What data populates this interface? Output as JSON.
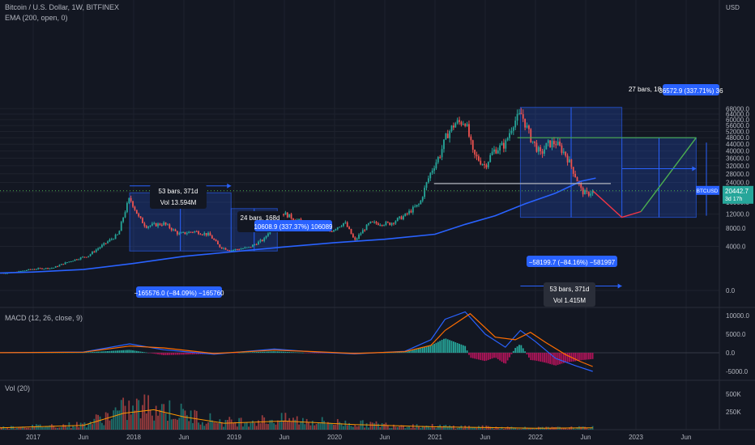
{
  "header": {
    "symbol_line": "Bitcoin / U.S. Dollar, 1W, BITFINEX",
    "ema_line": "EMA (200, open, 0)"
  },
  "panes": {
    "macd_label": "MACD (12, 26, close, 9)",
    "vol_label": "Vol (20)"
  },
  "axis": {
    "currency": "USD",
    "price_ticks": [
      {
        "v": 68000,
        "label": "68000.0"
      },
      {
        "v": 64000,
        "label": "64000.0"
      },
      {
        "v": 60000,
        "label": "60000.0"
      },
      {
        "v": 56000,
        "label": "56000.0"
      },
      {
        "v": 52000,
        "label": "52000.0"
      },
      {
        "v": 48000,
        "label": "48000.0"
      },
      {
        "v": 44000,
        "label": "44000.0"
      },
      {
        "v": 40000,
        "label": "40000.0"
      },
      {
        "v": 36000,
        "label": "36000.0"
      },
      {
        "v": 32000,
        "label": "32000.0"
      },
      {
        "v": 28000,
        "label": "28000.0"
      },
      {
        "v": 24000,
        "label": "24000.0"
      },
      {
        "v": 20000,
        "label": "20000.0"
      },
      {
        "v": 16000,
        "label": "16000.0"
      },
      {
        "v": 12000,
        "label": "12000.0"
      },
      {
        "v": 8000,
        "label": "8000.0"
      },
      {
        "v": 4000,
        "label": "4000.0"
      },
      {
        "v": 0,
        "label": "0.0"
      }
    ],
    "macd_ticks": [
      {
        "v": 10000,
        "label": "10000.0"
      },
      {
        "v": 5000,
        "label": "5000.0"
      },
      {
        "v": 0,
        "label": "0.0"
      },
      {
        "v": -5000,
        "label": "-5000.0"
      }
    ],
    "vol_ticks": [
      {
        "v": 500000,
        "label": "500K"
      },
      {
        "v": 250000,
        "label": "250K"
      }
    ],
    "time_ticks": [
      {
        "t": 2017.0,
        "label": "2017"
      },
      {
        "t": 2017.5,
        "label": "Jun"
      },
      {
        "t": 2018.0,
        "label": "2018"
      },
      {
        "t": 2018.5,
        "label": "Jun"
      },
      {
        "t": 2019.0,
        "label": "2019"
      },
      {
        "t": 2019.5,
        "label": "Jun"
      },
      {
        "t": 2020.0,
        "label": "2020"
      },
      {
        "t": 2020.5,
        "label": "Jun"
      },
      {
        "t": 2021.0,
        "label": "2021"
      },
      {
        "t": 2021.5,
        "label": "Jun"
      },
      {
        "t": 2022.0,
        "label": "2022"
      },
      {
        "t": 2022.5,
        "label": "Jun"
      },
      {
        "t": 2023.0,
        "label": "2023"
      },
      {
        "t": 2023.5,
        "label": "Jun"
      }
    ]
  },
  "price_badge": {
    "symbol": "BTCUSD",
    "price": "20442.7",
    "countdown": "3d 17h",
    "value": 20442.7
  },
  "annotations": {
    "box1": {
      "bars": "53 bars, 371d",
      "vol": "Vol 13.594M",
      "change": "−165576.0 (−84.09%) −165760"
    },
    "box2": {
      "bars": "24 bars, 168d",
      "vol": "Vol",
      "change": "10608.9 (337.37%) 106089"
    },
    "box3": {
      "bars": "53 bars, 371d",
      "vol": "Vol 1.415M",
      "change": "−58199.7 (−84.16%) −581997"
    },
    "box4": {
      "bars": "27 bars, 18",
      "change": "36572.9 (337.71%) 36"
    }
  },
  "colors": {
    "background": "#131722",
    "grid": "#1e222d",
    "up": "#26a69a",
    "down": "#ef5350",
    "ema": "#2962ff",
    "macd": "#2962ff",
    "signal": "#ff6d00",
    "range_box": "#2962ff",
    "green_line": "#4caf50",
    "red_line": "#f23645"
  },
  "chart_data": {
    "type": "candlestick",
    "interval": "1W",
    "price_axis": "log",
    "ohlc_x_units": "year",
    "ema_200": [
      [
        2016.55,
        600
      ],
      [
        2017.0,
        700
      ],
      [
        2017.5,
        900
      ],
      [
        2018.0,
        1500
      ],
      [
        2018.5,
        2400
      ],
      [
        2019.0,
        3100
      ],
      [
        2019.5,
        3900
      ],
      [
        2020.0,
        4700
      ],
      [
        2020.5,
        5400
      ],
      [
        2021.0,
        6500
      ],
      [
        2021.3,
        9000
      ],
      [
        2021.6,
        11500
      ],
      [
        2021.9,
        15500
      ],
      [
        2022.2,
        19500
      ],
      [
        2022.45,
        24500
      ],
      [
        2022.6,
        26000
      ]
    ],
    "price_path": [
      [
        2016.55,
        620
      ],
      [
        2016.8,
        650
      ],
      [
        2017.0,
        950
      ],
      [
        2017.2,
        1050
      ],
      [
        2017.4,
        1900
      ],
      [
        2017.55,
        2500
      ],
      [
        2017.7,
        4300
      ],
      [
        2017.85,
        6500
      ],
      [
        2017.96,
        17500
      ],
      [
        2018.05,
        11000
      ],
      [
        2018.12,
        8500
      ],
      [
        2018.3,
        9200
      ],
      [
        2018.45,
        6500
      ],
      [
        2018.6,
        7200
      ],
      [
        2018.75,
        6400
      ],
      [
        2018.85,
        4000
      ],
      [
        2018.96,
        3300
      ],
      [
        2019.15,
        3800
      ],
      [
        2019.3,
        5400
      ],
      [
        2019.48,
        12500
      ],
      [
        2019.6,
        10500
      ],
      [
        2019.8,
        8000
      ],
      [
        2019.96,
        7200
      ],
      [
        2020.1,
        9500
      ],
      [
        2020.2,
        5000
      ],
      [
        2020.35,
        9300
      ],
      [
        2020.55,
        9200
      ],
      [
        2020.7,
        11500
      ],
      [
        2020.85,
        15500
      ],
      [
        2020.96,
        29000
      ],
      [
        2021.05,
        38000
      ],
      [
        2021.12,
        50000
      ],
      [
        2021.2,
        57500
      ],
      [
        2021.3,
        59000
      ],
      [
        2021.38,
        38000
      ],
      [
        2021.5,
        32000
      ],
      [
        2021.58,
        40000
      ],
      [
        2021.7,
        44000
      ],
      [
        2021.78,
        58000
      ],
      [
        2021.86,
        64000
      ],
      [
        2021.95,
        48000
      ],
      [
        2022.05,
        38000
      ],
      [
        2022.12,
        44000
      ],
      [
        2022.2,
        45000
      ],
      [
        2022.3,
        38000
      ],
      [
        2022.38,
        29000
      ],
      [
        2022.46,
        20200
      ],
      [
        2022.52,
        19000
      ],
      [
        2022.57,
        20442.7
      ]
    ],
    "measure_boxes": [
      {
        "t0": 2017.96,
        "t1": 2018.97,
        "p0": 3200,
        "p1": 19600
      },
      {
        "t0": 2018.97,
        "t1": 2019.43,
        "p0": 3200,
        "p1": 13800
      },
      {
        "t0": 2021.85,
        "t1": 2022.86,
        "p0": 11000,
        "p1": 69000
      },
      {
        "t0": 2022.86,
        "t1": 2023.6,
        "p0": 11000,
        "p1": 48000
      }
    ],
    "projection": [
      [
        2022.57,
        20442.7
      ],
      [
        2022.86,
        11000
      ],
      [
        2023.05,
        12800
      ],
      [
        2023.6,
        48000
      ]
    ],
    "levels": [
      {
        "p": 48000,
        "t0": 2021.82,
        "t1": 2023.6
      },
      {
        "p": 23500,
        "t0": 2020.99,
        "t1": 2022.75
      }
    ],
    "macd": {
      "macd": [
        [
          2016.55,
          0
        ],
        [
          2017.5,
          200
        ],
        [
          2017.96,
          2400
        ],
        [
          2018.3,
          800
        ],
        [
          2018.8,
          -400
        ],
        [
          2019.4,
          1000
        ],
        [
          2019.8,
          200
        ],
        [
          2020.2,
          -300
        ],
        [
          2020.7,
          400
        ],
        [
          2020.96,
          3500
        ],
        [
          2021.1,
          9000
        ],
        [
          2021.3,
          11000
        ],
        [
          2021.5,
          5000
        ],
        [
          2021.7,
          1500
        ],
        [
          2021.85,
          6000
        ],
        [
          2022.0,
          3000
        ],
        [
          2022.2,
          -1500
        ],
        [
          2022.4,
          -3500
        ],
        [
          2022.57,
          -5000
        ]
      ],
      "signal": [
        [
          2016.55,
          0
        ],
        [
          2017.5,
          150
        ],
        [
          2017.96,
          1800
        ],
        [
          2018.3,
          1300
        ],
        [
          2018.8,
          -200
        ],
        [
          2019.4,
          700
        ],
        [
          2019.8,
          300
        ],
        [
          2020.2,
          -200
        ],
        [
          2020.7,
          300
        ],
        [
          2020.96,
          2000
        ],
        [
          2021.1,
          6000
        ],
        [
          2021.35,
          10500
        ],
        [
          2021.6,
          4200
        ],
        [
          2021.8,
          3500
        ],
        [
          2021.95,
          5500
        ],
        [
          2022.1,
          2800
        ],
        [
          2022.3,
          -500
        ],
        [
          2022.45,
          -2400
        ],
        [
          2022.57,
          -3700
        ]
      ]
    },
    "volume_sma": [
      [
        2016.55,
        20000
      ],
      [
        2017.5,
        60000
      ],
      [
        2017.9,
        230000
      ],
      [
        2018.2,
        280000
      ],
      [
        2018.5,
        180000
      ],
      [
        2018.9,
        90000
      ],
      [
        2019.5,
        120000
      ],
      [
        2020.2,
        70000
      ],
      [
        2021.0,
        40000
      ],
      [
        2021.5,
        30000
      ],
      [
        2022.0,
        20000
      ],
      [
        2022.57,
        25000
      ]
    ]
  }
}
